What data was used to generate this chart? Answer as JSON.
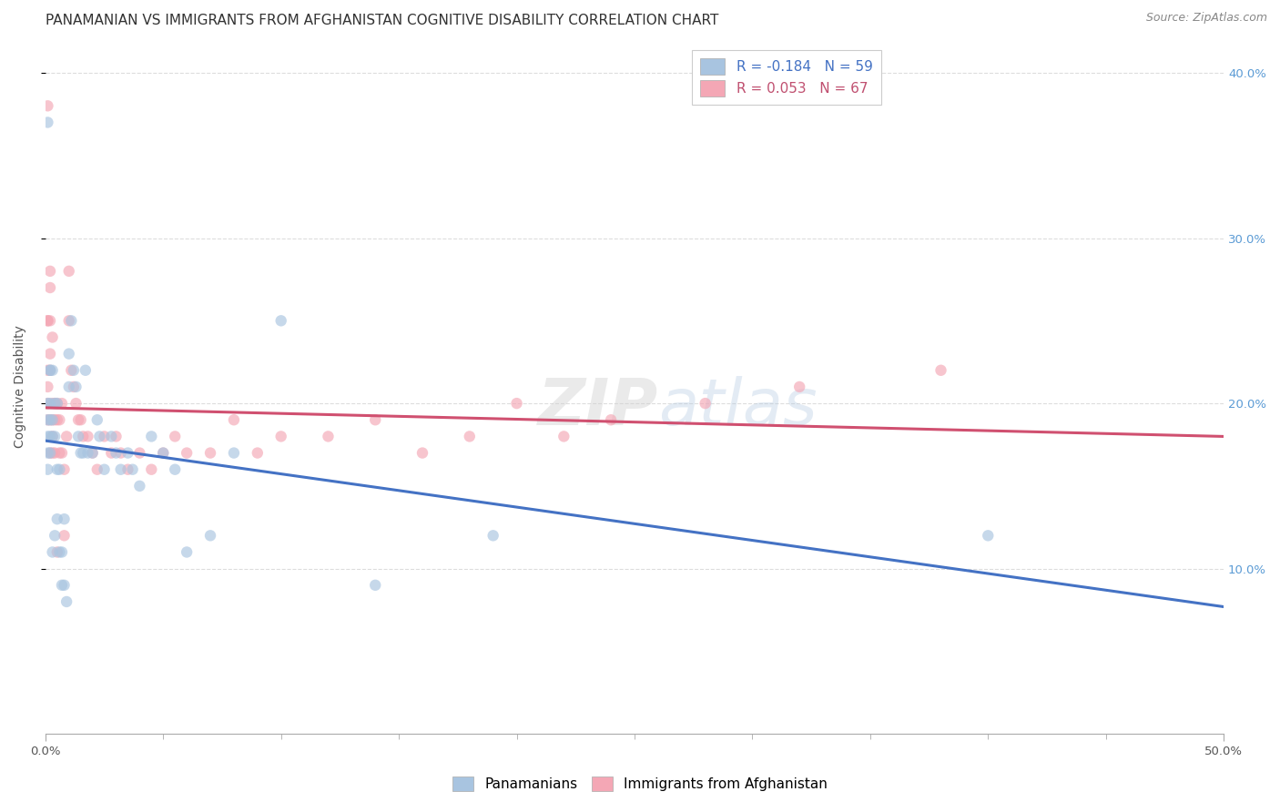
{
  "title": "PANAMANIAN VS IMMIGRANTS FROM AFGHANISTAN COGNITIVE DISABILITY CORRELATION CHART",
  "source": "Source: ZipAtlas.com",
  "ylabel": "Cognitive Disability",
  "xlim": [
    0.0,
    0.5
  ],
  "ylim": [
    0.0,
    0.42
  ],
  "xticks_major": [
    0.0,
    0.5
  ],
  "xticks_minor": [
    0.05,
    0.1,
    0.15,
    0.2,
    0.25,
    0.3,
    0.35,
    0.4,
    0.45
  ],
  "xticklabels_major": [
    "0.0%",
    "50.0%"
  ],
  "yticks": [
    0.1,
    0.2,
    0.3,
    0.4
  ],
  "yticklabels": [
    "10.0%",
    "20.0%",
    "30.0%",
    "40.0%"
  ],
  "legend_label1": "Panamanians",
  "legend_label2": "Immigrants from Afghanistan",
  "R1": "-0.184",
  "N1": "59",
  "R2": "0.053",
  "N2": "67",
  "color1": "#a8c4e0",
  "color2": "#f4a7b5",
  "line_color1": "#4472c4",
  "line_color2": "#d05070",
  "background_color": "#ffffff",
  "grid_color": "#dddddd",
  "scatter_alpha": 0.65,
  "scatter_size": 80,
  "blue_x": [
    0.001,
    0.001,
    0.001,
    0.001,
    0.001,
    0.001,
    0.002,
    0.002,
    0.002,
    0.002,
    0.002,
    0.002,
    0.003,
    0.003,
    0.003,
    0.003,
    0.004,
    0.004,
    0.004,
    0.005,
    0.005,
    0.005,
    0.006,
    0.006,
    0.007,
    0.007,
    0.008,
    0.008,
    0.009,
    0.01,
    0.01,
    0.011,
    0.012,
    0.013,
    0.014,
    0.015,
    0.016,
    0.017,
    0.018,
    0.02,
    0.022,
    0.023,
    0.025,
    0.028,
    0.03,
    0.032,
    0.035,
    0.037,
    0.04,
    0.045,
    0.05,
    0.055,
    0.06,
    0.07,
    0.08,
    0.1,
    0.14,
    0.19,
    0.4
  ],
  "blue_y": [
    0.19,
    0.18,
    0.17,
    0.16,
    0.2,
    0.37,
    0.22,
    0.2,
    0.19,
    0.18,
    0.22,
    0.17,
    0.22,
    0.19,
    0.18,
    0.11,
    0.2,
    0.18,
    0.12,
    0.2,
    0.16,
    0.13,
    0.16,
    0.11,
    0.11,
    0.09,
    0.13,
    0.09,
    0.08,
    0.23,
    0.21,
    0.25,
    0.22,
    0.21,
    0.18,
    0.17,
    0.17,
    0.22,
    0.17,
    0.17,
    0.19,
    0.18,
    0.16,
    0.18,
    0.17,
    0.16,
    0.17,
    0.16,
    0.15,
    0.18,
    0.17,
    0.16,
    0.11,
    0.12,
    0.17,
    0.25,
    0.09,
    0.12,
    0.12
  ],
  "pink_x": [
    0.001,
    0.001,
    0.001,
    0.001,
    0.001,
    0.001,
    0.001,
    0.002,
    0.002,
    0.002,
    0.002,
    0.002,
    0.002,
    0.002,
    0.003,
    0.003,
    0.003,
    0.003,
    0.003,
    0.004,
    0.004,
    0.004,
    0.005,
    0.005,
    0.005,
    0.006,
    0.006,
    0.007,
    0.007,
    0.008,
    0.008,
    0.009,
    0.01,
    0.01,
    0.011,
    0.012,
    0.013,
    0.014,
    0.015,
    0.016,
    0.018,
    0.02,
    0.022,
    0.025,
    0.028,
    0.03,
    0.032,
    0.035,
    0.04,
    0.045,
    0.05,
    0.055,
    0.06,
    0.07,
    0.08,
    0.09,
    0.1,
    0.12,
    0.14,
    0.16,
    0.18,
    0.2,
    0.22,
    0.24,
    0.28,
    0.32,
    0.38
  ],
  "pink_y": [
    0.19,
    0.25,
    0.25,
    0.22,
    0.21,
    0.2,
    0.38,
    0.28,
    0.27,
    0.25,
    0.23,
    0.22,
    0.19,
    0.17,
    0.24,
    0.2,
    0.19,
    0.18,
    0.17,
    0.2,
    0.19,
    0.17,
    0.2,
    0.19,
    0.11,
    0.19,
    0.17,
    0.2,
    0.17,
    0.16,
    0.12,
    0.18,
    0.28,
    0.25,
    0.22,
    0.21,
    0.2,
    0.19,
    0.19,
    0.18,
    0.18,
    0.17,
    0.16,
    0.18,
    0.17,
    0.18,
    0.17,
    0.16,
    0.17,
    0.16,
    0.17,
    0.18,
    0.17,
    0.17,
    0.19,
    0.17,
    0.18,
    0.18,
    0.19,
    0.17,
    0.18,
    0.2,
    0.18,
    0.19,
    0.2,
    0.21,
    0.22
  ],
  "watermark_zip": "ZIP",
  "watermark_atlas": "atlas",
  "title_fontsize": 11,
  "axis_fontsize": 10,
  "tick_fontsize": 9.5,
  "legend_fontsize": 11
}
